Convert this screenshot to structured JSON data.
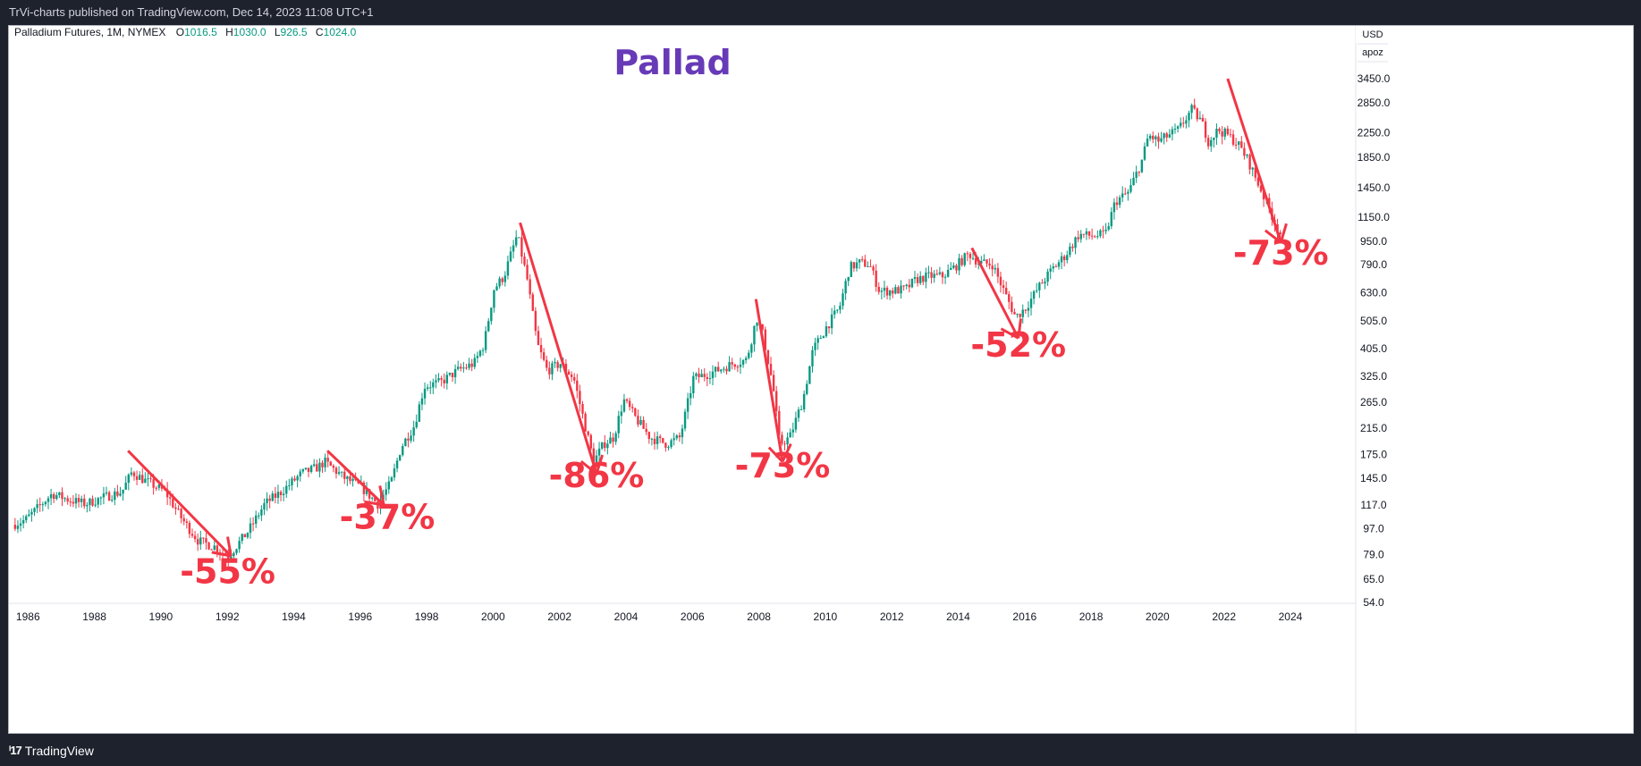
{
  "header": {
    "published": "TrVi-charts published on TradingView.com, Dec 14, 2023 11:08 UTC+1"
  },
  "footer": {
    "brand": "TradingView"
  },
  "legend": {
    "symbol": "Palladium Futures, 1M, NYMEX",
    "o_label": "O",
    "o_value": "1016.5",
    "h_label": "H",
    "h_value": "1030.0",
    "l_label": "L",
    "l_value": "926.5",
    "c_label": "C",
    "c_value": "1024.0"
  },
  "scale_buttons": {
    "currency": "USD",
    "unit": "apoz"
  },
  "chart_data": {
    "type": "candlestick",
    "title": "Pallad",
    "scale": "log",
    "ylim": [
      54,
      3450
    ],
    "xlim": [
      1985.75,
      2026.0
    ],
    "y_ticks": [
      "3450.0",
      "2850.0",
      "2250.0",
      "1850.0",
      "1450.0",
      "1150.0",
      "950.0",
      "790.0",
      "630.0",
      "505.0",
      "405.0",
      "325.0",
      "265.0",
      "215.0",
      "175.0",
      "145.0",
      "117.0",
      "97.0",
      "79.0",
      "65.0",
      "54.0"
    ],
    "x_ticks": [
      "1986",
      "1988",
      "1990",
      "1992",
      "1994",
      "1996",
      "1998",
      "2000",
      "2002",
      "2004",
      "2006",
      "2008",
      "2010",
      "2012",
      "2014",
      "2016",
      "2018",
      "2020",
      "2022",
      "2024"
    ],
    "up_color": "#089981",
    "down_color": "#f23645",
    "price_path": [
      [
        1985.8,
        100
      ],
      [
        1986.2,
        104
      ],
      [
        1987.0,
        128
      ],
      [
        1987.5,
        122
      ],
      [
        1988.0,
        118
      ],
      [
        1988.6,
        125
      ],
      [
        1989.1,
        130
      ],
      [
        1989.4,
        152
      ],
      [
        1989.8,
        142
      ],
      [
        1990.4,
        130
      ],
      [
        1990.9,
        105
      ],
      [
        1991.4,
        88
      ],
      [
        1991.9,
        84
      ],
      [
        1992.3,
        78
      ],
      [
        1992.9,
        95
      ],
      [
        1993.4,
        118
      ],
      [
        1993.9,
        130
      ],
      [
        1994.5,
        150
      ],
      [
        1995.0,
        158
      ],
      [
        1995.2,
        165
      ],
      [
        1995.8,
        145
      ],
      [
        1996.3,
        135
      ],
      [
        1996.8,
        118
      ],
      [
        1997.2,
        140
      ],
      [
        1997.5,
        185
      ],
      [
        1997.9,
        220
      ],
      [
        1998.2,
        300
      ],
      [
        1998.7,
        310
      ],
      [
        1999.2,
        340
      ],
      [
        1999.7,
        360
      ],
      [
        2000.0,
        420
      ],
      [
        2000.3,
        650
      ],
      [
        2000.6,
        720
      ],
      [
        2000.8,
        850
      ],
      [
        2001.0,
        1000
      ],
      [
        2001.3,
        700
      ],
      [
        2001.6,
        420
      ],
      [
        2001.9,
        340
      ],
      [
        2002.3,
        360
      ],
      [
        2002.7,
        320
      ],
      [
        2003.0,
        230
      ],
      [
        2003.3,
        165
      ],
      [
        2003.6,
        190
      ],
      [
        2003.9,
        200
      ],
      [
        2004.2,
        270
      ],
      [
        2004.6,
        230
      ],
      [
        2005.0,
        200
      ],
      [
        2005.5,
        190
      ],
      [
        2005.9,
        200
      ],
      [
        2006.3,
        320
      ],
      [
        2006.7,
        330
      ],
      [
        2007.0,
        340
      ],
      [
        2007.5,
        360
      ],
      [
        2007.9,
        370
      ],
      [
        2008.1,
        460
      ],
      [
        2008.2,
        520
      ],
      [
        2008.4,
        450
      ],
      [
        2008.7,
        300
      ],
      [
        2008.9,
        190
      ],
      [
        2009.2,
        200
      ],
      [
        2009.6,
        270
      ],
      [
        2009.9,
        400
      ],
      [
        2010.3,
        480
      ],
      [
        2010.7,
        560
      ],
      [
        2011.0,
        770
      ],
      [
        2011.3,
        800
      ],
      [
        2011.6,
        790
      ],
      [
        2011.9,
        640
      ],
      [
        2012.3,
        640
      ],
      [
        2012.7,
        650
      ],
      [
        2013.0,
        700
      ],
      [
        2013.4,
        720
      ],
      [
        2013.8,
        720
      ],
      [
        2014.2,
        780
      ],
      [
        2014.6,
        860
      ],
      [
        2014.9,
        800
      ],
      [
        2015.3,
        790
      ],
      [
        2015.7,
        620
      ],
      [
        2016.0,
        520
      ],
      [
        2016.3,
        560
      ],
      [
        2016.7,
        660
      ],
      [
        2017.1,
        760
      ],
      [
        2017.5,
        850
      ],
      [
        2017.9,
        1000
      ],
      [
        2018.3,
        990
      ],
      [
        2018.7,
        1000
      ],
      [
        2019.0,
        1300
      ],
      [
        2019.4,
        1400
      ],
      [
        2019.8,
        1800
      ],
      [
        2020.0,
        2200
      ],
      [
        2020.3,
        2100
      ],
      [
        2020.6,
        2200
      ],
      [
        2020.9,
        2300
      ],
      [
        2021.3,
        2700
      ],
      [
        2021.6,
        2450
      ],
      [
        2021.8,
        2100
      ],
      [
        2022.1,
        2300
      ],
      [
        2022.4,
        2200
      ],
      [
        2022.7,
        2050
      ],
      [
        2023.0,
        1800
      ],
      [
        2023.3,
        1500
      ],
      [
        2023.6,
        1250
      ],
      [
        2023.95,
        1010
      ]
    ]
  },
  "annotations": [
    {
      "label": "-55%"
    },
    {
      "label": "-37%"
    },
    {
      "label": "-86%"
    },
    {
      "label": "-73%"
    },
    {
      "label": "-52%"
    },
    {
      "label": "-73%"
    }
  ]
}
